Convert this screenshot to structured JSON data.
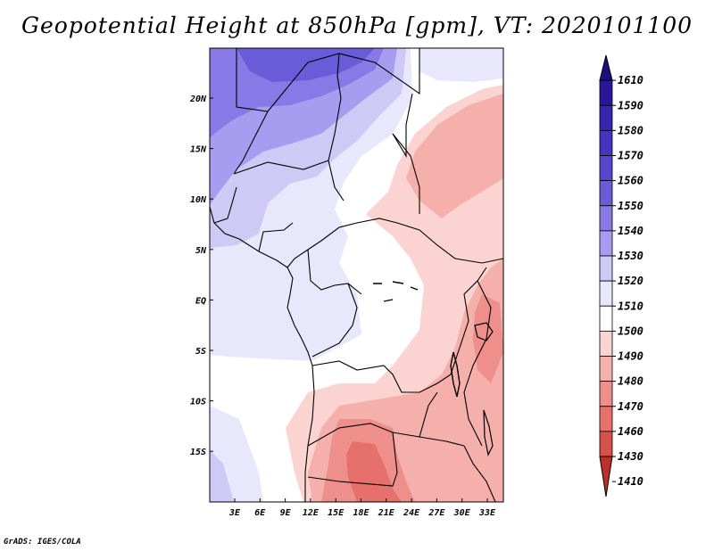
{
  "title": "Geopotential Height at 850hPa [gpm], VT: 2020101100",
  "credit": "GrADS: IGES/COLA",
  "latitude_labels": [
    "20N",
    "15N",
    "10N",
    "5N",
    "EQ",
    "5S",
    "10S",
    "15S"
  ],
  "longitude_labels": [
    "3E",
    "6E",
    "9E",
    "12E",
    "15E",
    "18E",
    "21E",
    "24E",
    "27E",
    "30E",
    "33E"
  ],
  "colorbar": {
    "levels": [
      "1610",
      "1590",
      "1580",
      "1570",
      "1560",
      "1550",
      "1540",
      "1530",
      "1520",
      "1510",
      "1500",
      "1490",
      "1480",
      "1470",
      "1460",
      "1430",
      "1410"
    ],
    "colors": [
      "#1e0d7f",
      "#2a169b",
      "#3525b0",
      "#4533c2",
      "#5747cf",
      "#6a5cd9",
      "#8879e6",
      "#a89cf0",
      "#cfc9f6",
      "#e8e7fc",
      "#ffffff",
      "#fbd4d1",
      "#f5b0ac",
      "#ee8f8b",
      "#e6706b",
      "#d8504b",
      "#c02e2a"
    ]
  },
  "field": {
    "variable": "Geopotential Height",
    "level": "850hPa",
    "units": "gpm",
    "valid_time": "2020101100",
    "lon_range": [
      0,
      34
    ],
    "lat_range": [
      -20,
      25
    ]
  }
}
